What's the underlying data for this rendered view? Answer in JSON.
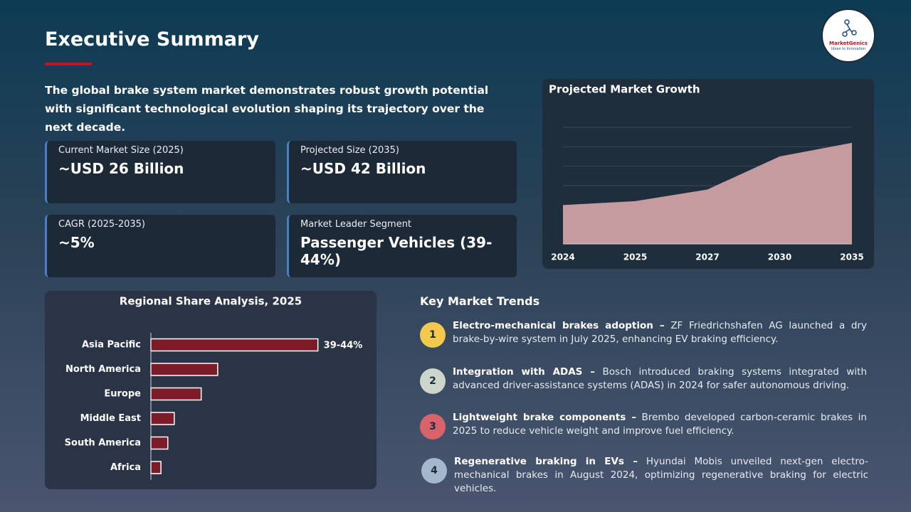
{
  "header": {
    "title": "Executive Summary",
    "intro": "The global brake system market demonstrates robust growth potential with significant technological evolution shaping its trajectory over the next decade."
  },
  "logo": {
    "name": "MarketGenics",
    "tagline": "Ideas to Innovation"
  },
  "kpis": [
    {
      "label": "Current Market Size (2025)",
      "value": "~USD 26 Billion"
    },
    {
      "label": "Projected Size (2035)",
      "value": "~USD 42 Billion"
    },
    {
      "label": "CAGR (2025-2035)",
      "value": "~5%"
    },
    {
      "label": "Market Leader Segment",
      "value": "Passenger Vehicles (39-44%)"
    }
  ],
  "chart_data": [
    {
      "type": "area",
      "title": "Projected Market Growth",
      "categories": [
        "2024",
        "2025",
        "2027",
        "2030",
        "2035"
      ],
      "values": [
        2.0,
        2.2,
        2.8,
        4.5,
        5.2
      ],
      "color": "#c59ba0",
      "ylim": [
        0,
        6
      ],
      "yticks": [
        3,
        4,
        5,
        6
      ],
      "grid": true
    },
    {
      "type": "hbar",
      "title": "Regional Share Analysis, 2025",
      "categories": [
        "Asia Pacific",
        "North America",
        "Europe",
        "Middle East",
        "South America",
        "Africa"
      ],
      "values": [
        41.5,
        16.6,
        12.5,
        5.8,
        4.2,
        2.5
      ],
      "value_labels": [
        "39-44%",
        null,
        null,
        null,
        null,
        null
      ],
      "color": "#7b1c28",
      "xlim": [
        0,
        55
      ]
    }
  ],
  "trends": {
    "title": "Key Market Trends",
    "items": [
      {
        "number": "1",
        "heading": "Electro-mechanical brakes adoption –",
        "text": "ZF Friedrichshafen AG launched a dry brake-by-wire system in July 2025, enhancing EV braking efficiency.",
        "color": "#f2c94c"
      },
      {
        "number": "2",
        "heading": "Integration with ADAS –",
        "text": "Bosch introduced braking systems integrated with advanced driver-assistance systems (ADAS) in 2024 for safer autonomous driving.",
        "color": "#cdd5cc"
      },
      {
        "number": "3",
        "heading": "Lightweight brake components –",
        "text": "Brembo developed carbon-ceramic brakes in 2025 to reduce vehicle weight and improve fuel efficiency.",
        "color": "#d9636a"
      },
      {
        "number": "4",
        "heading": "Regenerative braking in EVs –",
        "text": "Hyundai Mobis unveiled next-gen electro-mechanical brakes in August 2024, optimizing regenerative braking for electric vehicles.",
        "color": "#a3b8cb"
      }
    ]
  }
}
